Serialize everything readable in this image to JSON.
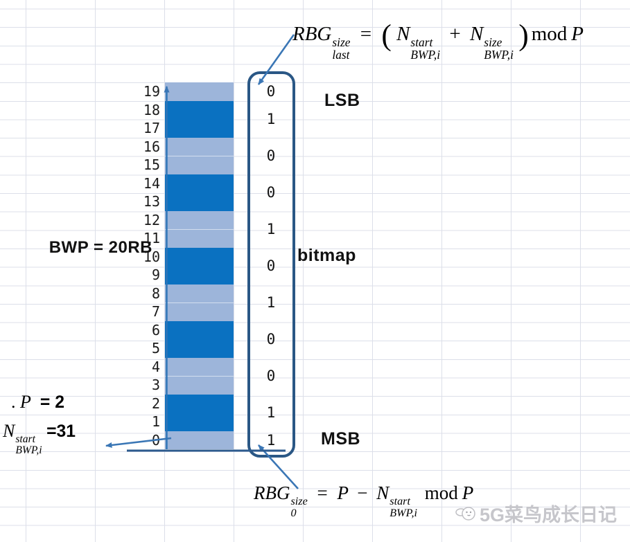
{
  "colors": {
    "rbg_dark": "#0a71c1",
    "rbg_light": "#9db5da",
    "box_border": "#2a5785",
    "arrow": "#3a76b5",
    "underline": "#2d5b8e",
    "grid": "#dcdfe9"
  },
  "chart": {
    "type": "bitmap-allocation-diagram",
    "bwp_size_rb": 20,
    "rbg_size_P": 2,
    "n_bwp_start": 31,
    "rb_indices_top_to_bottom": [
      19,
      18,
      17,
      16,
      15,
      14,
      13,
      12,
      11,
      10,
      9,
      8,
      7,
      6,
      5,
      4,
      3,
      2,
      1,
      0
    ],
    "rbgs_top_to_bottom": [
      {
        "rbs": "19",
        "size": 1,
        "shade": "light",
        "bit": "0"
      },
      {
        "rbs": "18-17",
        "size": 2,
        "shade": "dark",
        "bit": "1"
      },
      {
        "rbs": "16-15",
        "size": 2,
        "shade": "light",
        "bit": "0"
      },
      {
        "rbs": "14-13",
        "size": 2,
        "shade": "dark",
        "bit": "0"
      },
      {
        "rbs": "12-11",
        "size": 2,
        "shade": "light",
        "bit": "1"
      },
      {
        "rbs": "10-9",
        "size": 2,
        "shade": "dark",
        "bit": "0"
      },
      {
        "rbs": "8-7",
        "size": 2,
        "shade": "light",
        "bit": "1"
      },
      {
        "rbs": "6-5",
        "size": 2,
        "shade": "dark",
        "bit": "0"
      },
      {
        "rbs": "4-3",
        "size": 2,
        "shade": "light",
        "bit": "0"
      },
      {
        "rbs": "2-1",
        "size": 2,
        "shade": "dark",
        "bit": "1"
      },
      {
        "rbs": "0",
        "size": 1,
        "shade": "light",
        "bit": "1"
      }
    ],
    "bitmap_lsb_to_msb": "01001010011"
  },
  "column_labels": {
    "lsb": "LSB",
    "bitmap": "bitmap",
    "msb": "MSB"
  },
  "side_labels": {
    "bwp": "BWP = 20RB",
    "p_dot": ".",
    "p_base": "P",
    "p_value": "= 2",
    "n_base": "N",
    "n_sup": "start",
    "n_sub": "BWP,i",
    "n_value": "=31"
  },
  "formula_top": {
    "base": "RBG",
    "sup": "size",
    "sub": "last",
    "equals": "=",
    "lparen": "(",
    "term1": {
      "base": "N",
      "sup": "start",
      "sub": "BWP,i"
    },
    "plus": "+",
    "term2": {
      "base": "N",
      "sup": "size",
      "sub": "BWP,i"
    },
    "rparen": ")",
    "mod": "mod",
    "P": "P"
  },
  "formula_bottom": {
    "base": "RBG",
    "sup": "size",
    "sub": "0",
    "equals": "=",
    "P1": "P",
    "minus": "−",
    "term": {
      "base": "N",
      "sup": "start",
      "sub": "BWP,i"
    },
    "mod": "mod",
    "P2": "P"
  },
  "watermark": {
    "text": "5G菜鸟成长日记"
  }
}
